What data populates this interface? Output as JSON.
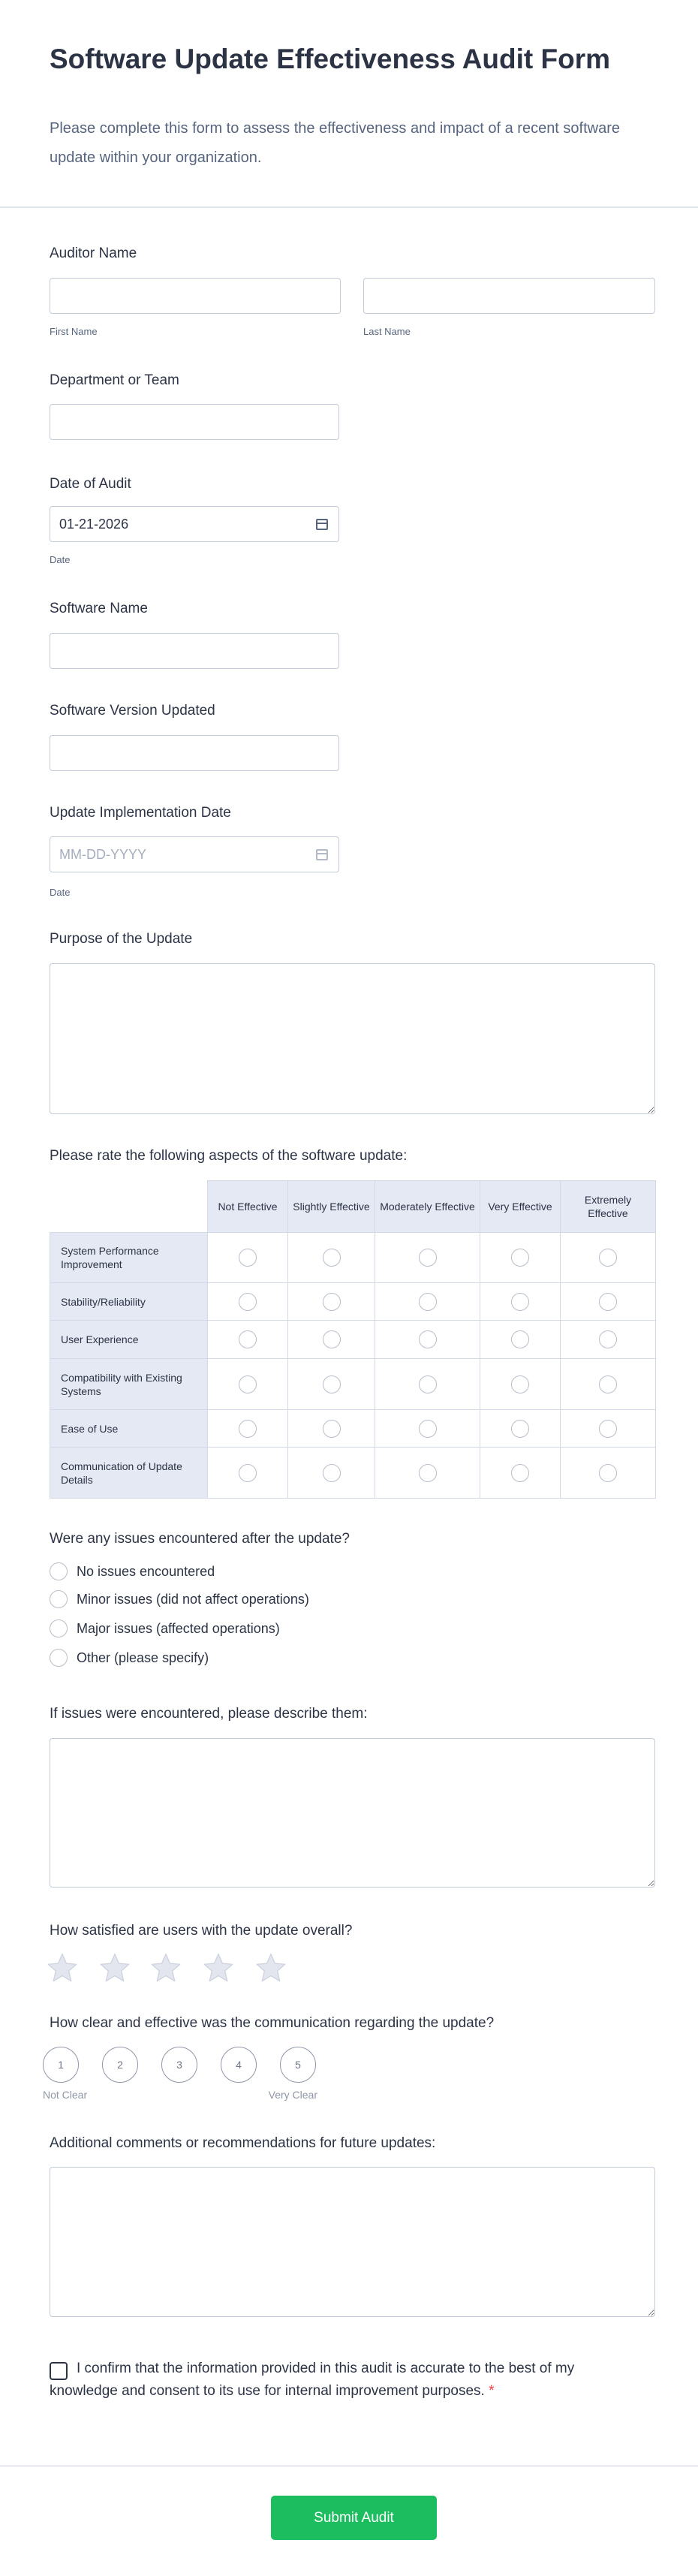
{
  "header": {
    "title": "Software Update Effectiveness Audit Form",
    "subtitle": "Please complete this form to assess the effectiveness and impact of a recent software update within your organization."
  },
  "auditor_name": {
    "label": "Auditor Name",
    "first_sublabel": "First Name",
    "last_sublabel": "Last Name",
    "first_value": "",
    "last_value": ""
  },
  "department": {
    "label": "Department or Team",
    "value": ""
  },
  "date_of_audit": {
    "label": "Date of Audit",
    "value": "01-21-2026",
    "sublabel": "Date",
    "icon": "calendar-icon"
  },
  "software_name": {
    "label": "Software Name",
    "value": ""
  },
  "software_version": {
    "label": "Software Version Updated",
    "value": ""
  },
  "implementation_date": {
    "label": "Update Implementation Date",
    "placeholder": "MM-DD-YYYY",
    "sublabel": "Date",
    "icon": "calendar-icon"
  },
  "purpose": {
    "label": "Purpose of the Update",
    "value": ""
  },
  "rating_matrix": {
    "label": "Please rate the following aspects of the software update:",
    "columns": [
      "Not Effective",
      "Slightly Effective",
      "Moderately Effective",
      "Very Effective",
      "Extremely Effective"
    ],
    "rows": [
      "System Performance Improvement",
      "Stability/Reliability",
      "User Experience",
      "Compatibility with Existing Systems",
      "Ease of Use",
      "Communication of Update Details"
    ]
  },
  "issues": {
    "label": "Were any issues encountered after the update?",
    "options": [
      "No issues encountered",
      "Minor issues (did not affect operations)",
      "Major issues (affected operations)",
      "Other (please specify)"
    ]
  },
  "issues_description": {
    "label": "If issues were encountered, please describe them:",
    "value": ""
  },
  "satisfaction": {
    "label": "How satisfied are users with the update overall?",
    "max_stars": 5,
    "selected": 0,
    "star_color": "#e3e6ee"
  },
  "communication": {
    "label": "How clear and effective was the communication regarding the update?",
    "options": [
      "1",
      "2",
      "3",
      "4",
      "5"
    ],
    "min_label": "Not Clear",
    "max_label": "Very Clear"
  },
  "comments": {
    "label": "Additional comments or recommendations for future updates:",
    "value": ""
  },
  "confirmation": {
    "text": "I confirm that the information provided in this audit is accurate to the best of my knowledge and consent to its use for internal improvement purposes.",
    "required_mark": "*",
    "checked": false
  },
  "submit": {
    "label": "Submit Audit",
    "color": "#1bbd5e"
  }
}
